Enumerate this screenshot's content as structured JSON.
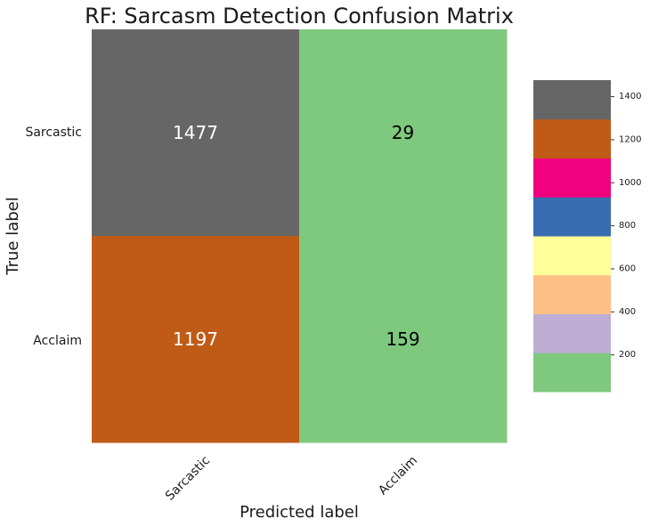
{
  "chart_data": {
    "type": "heatmap",
    "title": "RF: Sarcasm Detection Confusion Matrix",
    "xlabel": "Predicted label",
    "ylabel": "True label",
    "x_categories": [
      "Sarcastic",
      "Acclaim"
    ],
    "y_categories": [
      "Sarcastic",
      "Acclaim"
    ],
    "values": [
      [
        1477,
        29
      ],
      [
        1197,
        159
      ]
    ],
    "colormap": [
      "#7fc97f",
      "#beaed4",
      "#fdc086",
      "#ffff99",
      "#386cb0",
      "#f0027f",
      "#bf5b17",
      "#666666"
    ],
    "colorbar": {
      "min": 29,
      "max": 1477,
      "ticks": [
        200,
        400,
        600,
        800,
        1000,
        1200,
        1400
      ]
    },
    "text_colors": {
      "light": "#ffffff",
      "dark": "#000000"
    }
  }
}
